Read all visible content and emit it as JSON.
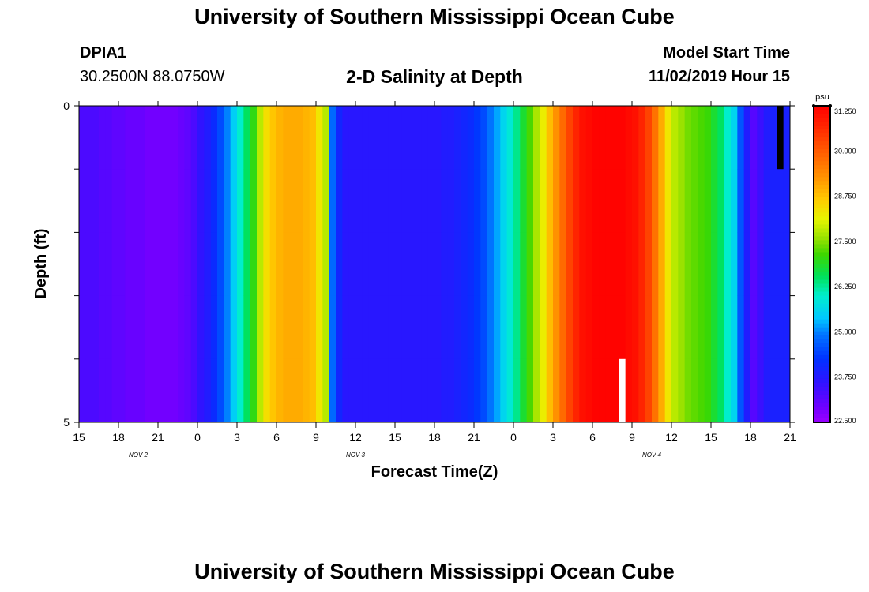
{
  "header": {
    "title": "University of Southern Mississippi Ocean Cube",
    "station_id": "DPIA1",
    "coordinates": "30.2500N 88.0750W",
    "model_start_label": "Model Start Time",
    "model_start_value": "11/02/2019 Hour 15"
  },
  "footer": {
    "title": "University of Southern Mississippi Ocean Cube"
  },
  "chart_data": {
    "type": "heatmap",
    "title": "2-D Salinity at Depth",
    "xlabel": "Forecast Time(Z)",
    "ylabel": "Depth (ft)",
    "x_range_hours": [
      0,
      54
    ],
    "ylim": [
      0,
      5
    ],
    "y_ticks": [
      "0",
      "",
      "",
      "",
      "",
      "5"
    ],
    "x_tick_labels": [
      "15",
      "18",
      "21",
      "0",
      "3",
      "6",
      "9",
      "12",
      "15",
      "18",
      "21",
      "0",
      "3",
      "6",
      "9",
      "12",
      "15",
      "18",
      "21"
    ],
    "date_labels": [
      {
        "text": "NOV 2",
        "hour": 4.5
      },
      {
        "text": "NOV 3",
        "hour": 21
      },
      {
        "text": "NOV 4",
        "hour": 43.5
      }
    ],
    "depth_levels": 5,
    "time_steps": [
      0,
      0.5,
      1,
      1.5,
      2,
      2.5,
      3,
      3.5,
      4,
      4.5,
      5,
      5.5,
      6,
      6.5,
      7,
      7.5,
      8,
      8.5,
      9,
      9.5,
      10,
      10.5,
      11,
      11.5,
      12,
      12.5,
      13,
      13.5,
      14,
      14.5,
      15,
      15.5,
      16,
      16.5,
      17,
      17.5,
      18,
      18.5,
      19,
      19.5,
      20,
      20.5,
      21,
      21.5,
      22,
      22.5,
      23,
      23.5,
      24,
      24.5,
      25,
      25.5,
      26,
      26.5,
      27,
      27.5,
      28,
      28.5,
      29,
      29.5,
      30,
      30.5,
      31,
      31.5,
      32,
      32.5,
      33,
      33.5,
      34,
      34.5,
      35,
      35.5,
      36,
      36.5,
      37,
      37.5,
      38,
      38.5,
      39,
      39.5,
      40,
      40.5,
      41,
      41.5,
      42,
      42.5,
      43,
      43.5,
      44,
      44.5,
      45,
      45.5,
      46,
      46.5,
      47,
      47.5,
      48,
      48.5,
      49,
      49.5,
      50,
      50.5,
      51,
      51.5,
      52,
      52.5,
      53,
      53.5
    ],
    "surface_salinity_psu": [
      23.3,
      23.3,
      23.3,
      23.2,
      23.2,
      23.1,
      23.1,
      23.0,
      23.0,
      23.0,
      22.9,
      22.9,
      22.9,
      22.9,
      22.9,
      23.0,
      23.1,
      23.3,
      23.6,
      23.8,
      24.1,
      24.5,
      25.0,
      25.5,
      26.0,
      26.5,
      27.0,
      27.8,
      28.4,
      28.7,
      28.9,
      29.0,
      29.0,
      29.0,
      28.9,
      28.8,
      28.3,
      27.8,
      24.8,
      24.0,
      23.7,
      23.7,
      23.7,
      23.7,
      23.7,
      23.7,
      23.7,
      23.7,
      23.7,
      23.7,
      23.7,
      23.7,
      23.7,
      23.7,
      23.7,
      23.8,
      23.8,
      23.9,
      24.0,
      24.1,
      24.3,
      24.5,
      24.9,
      25.2,
      25.6,
      25.9,
      26.3,
      26.8,
      27.2,
      27.7,
      28.2,
      28.8,
      29.3,
      29.8,
      30.3,
      30.7,
      31.0,
      31.1,
      31.2,
      31.2,
      31.2,
      31.2,
      31.2,
      31.1,
      31.0,
      30.7,
      30.3,
      29.7,
      29.0,
      28.3,
      27.8,
      27.6,
      27.4,
      27.3,
      27.2,
      27.1,
      26.8,
      26.5,
      26.0,
      25.6,
      24.6,
      23.8,
      23.2,
      23.5,
      23.8,
      23.9,
      23.9,
      23.9
    ],
    "colorbar": {
      "unit": "psu",
      "min": 22.5,
      "max": 31.25,
      "tick_labels": [
        "31.250",
        "30.000",
        "28.750",
        "27.500",
        "26.250",
        "25.000",
        "23.750",
        "22.500"
      ],
      "tick_values": [
        31.25,
        30.0,
        28.75,
        27.5,
        26.25,
        25.0,
        23.75,
        22.5
      ]
    },
    "missing_cells": [
      {
        "hour": 41,
        "level": 4,
        "color": "#ffffff"
      },
      {
        "hour": 53,
        "level": 0,
        "color": "#000000"
      }
    ]
  }
}
